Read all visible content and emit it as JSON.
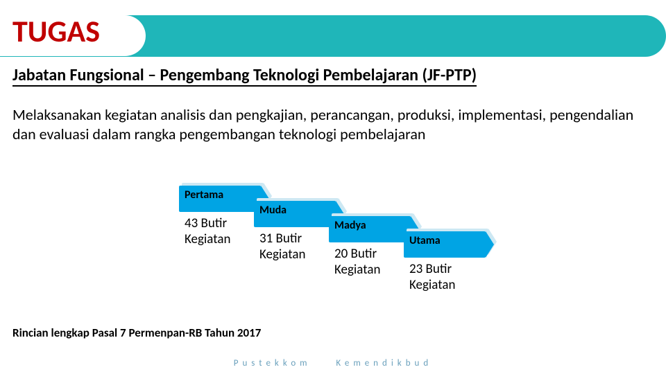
{
  "title": "TUGAS",
  "subtitle": "Jabatan Fungsional – Pengembang Teknologi Pembelajaran (JF-PTP)",
  "description": "Melaksanakan kegiatan analisis dan pengkajian, perancangan, produksi, implementasi, pengendalian dan evaluasi dalam rangka pengembangan teknologi pembelajaran",
  "steps": [
    {
      "label": "Pertama",
      "body": "43 Butir Kegiatan"
    },
    {
      "label": "Muda",
      "body": "31 Butir Kegiatan"
    },
    {
      "label": "Madya",
      "body": "20 Butir Kegiatan"
    },
    {
      "label": "Utama",
      "body": "23 Butir Kegiatan"
    }
  ],
  "footnote": "Rincian lengkap Pasal 7 Permenpan-RB Tahun 2017",
  "footer_left": "Pustekkom",
  "footer_right": "Kemendikbud",
  "colors": {
    "header_band": "#1fb6b9",
    "title": "#c00000",
    "tab": "#00a4e4",
    "tab_shadow": "#cde8f3",
    "footer_text": "#6aa0bc",
    "background": "#ffffff"
  },
  "typography": {
    "title_fontsize": 44,
    "subtitle_fontsize": 24,
    "description_fontsize": 22,
    "step_label_fontsize": 16,
    "step_body_fontsize": 19,
    "footnote_fontsize": 17,
    "footer_fontsize": 13,
    "footer_letterspacing": 6
  }
}
